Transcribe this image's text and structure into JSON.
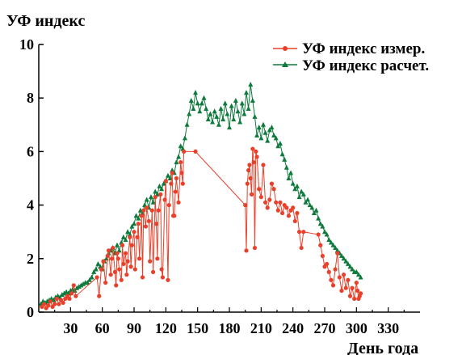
{
  "chart_data": {
    "type": "line",
    "ylabel": "УФ индекс",
    "xlabel": "День года",
    "xlim": [
      0,
      360
    ],
    "ylim": [
      0,
      10
    ],
    "x_ticks": [
      30,
      60,
      90,
      120,
      150,
      180,
      210,
      240,
      270,
      300,
      330
    ],
    "y_ticks": [
      0,
      2,
      4,
      6,
      8,
      10
    ],
    "legend_position": "top-right",
    "series": [
      {
        "name": "УФ индекс измер.",
        "color": "#e8402a",
        "marker": "circle",
        "x": [
          3,
          5,
          7,
          9,
          11,
          13,
          15,
          17,
          19,
          21,
          23,
          25,
          27,
          29,
          31,
          33,
          35,
          55,
          57,
          59,
          61,
          63,
          65,
          66,
          68,
          69,
          70,
          72,
          73,
          74,
          75,
          76,
          78,
          79,
          80,
          82,
          83,
          84,
          86,
          87,
          88,
          90,
          91,
          93,
          94,
          95,
          97,
          98,
          99,
          101,
          102,
          104,
          105,
          107,
          108,
          110,
          111,
          112,
          113,
          115,
          116,
          117,
          119,
          120,
          122,
          123,
          125,
          126,
          127,
          128,
          129,
          130,
          132,
          134,
          135,
          136,
          137,
          148,
          195,
          196,
          197,
          198,
          199,
          200,
          201,
          202,
          203,
          204,
          205,
          206,
          208,
          210,
          212,
          214,
          216,
          218,
          220,
          222,
          224,
          226,
          228,
          230,
          232,
          234,
          236,
          238,
          240,
          242,
          244,
          246,
          248,
          250,
          264,
          266,
          268,
          270,
          272,
          274,
          276,
          278,
          280,
          282,
          284,
          286,
          288,
          290,
          292,
          294,
          296,
          298,
          300,
          301,
          302,
          303,
          304
        ],
        "y": [
          0.2,
          0.3,
          0.15,
          0.25,
          0.4,
          0.2,
          0.3,
          0.5,
          0.3,
          0.45,
          0.35,
          0.5,
          0.6,
          0.5,
          0.7,
          1.0,
          0.6,
          1.3,
          0.6,
          1.6,
          1.9,
          1.1,
          2.1,
          2.3,
          1.4,
          2.0,
          2.4,
          1.5,
          1.0,
          2.2,
          2.0,
          1.6,
          1.2,
          2.5,
          1.8,
          2.2,
          1.4,
          1.9,
          2.8,
          1.7,
          2.5,
          3.0,
          1.6,
          2.8,
          3.3,
          2.0,
          3.6,
          1.3,
          3.8,
          3.2,
          3.9,
          3.4,
          1.9,
          3.8,
          1.5,
          4.3,
          3.3,
          2.0,
          3.8,
          4.4,
          1.6,
          1.3,
          4.2,
          4.9,
          1.2,
          4.0,
          4.8,
          5.2,
          3.6,
          3.6,
          4.5,
          5.0,
          4.1,
          5.6,
          5.2,
          4.8,
          6.0,
          6.0,
          4.0,
          2.3,
          4.8,
          5.3,
          5.5,
          5.0,
          4.4,
          6.1,
          5.6,
          2.4,
          6.0,
          5.8,
          4.6,
          4.3,
          5.5,
          4.1,
          3.9,
          4.2,
          4.8,
          4.6,
          4.1,
          3.8,
          4.1,
          3.7,
          4.0,
          3.9,
          3.6,
          3.8,
          3.9,
          3.4,
          3.7,
          3.0,
          2.4,
          3.0,
          2.9,
          2.5,
          2.1,
          1.7,
          1.8,
          1.5,
          1.2,
          1.0,
          1.6,
          2.2,
          1.3,
          0.8,
          1.4,
          0.9,
          1.2,
          0.6,
          0.9,
          0.5,
          1.1,
          0.8,
          0.5,
          0.6,
          0.7
        ]
      },
      {
        "name": "УФ индекс расчет.",
        "color": "#0e7a3c",
        "marker": "triangle",
        "x": [
          2,
          4,
          6,
          8,
          10,
          12,
          14,
          16,
          18,
          20,
          22,
          24,
          26,
          28,
          30,
          32,
          34,
          36,
          38,
          40,
          42,
          44,
          46,
          48,
          50,
          52,
          54,
          56,
          58,
          60,
          62,
          64,
          66,
          68,
          70,
          72,
          74,
          76,
          78,
          80,
          82,
          84,
          86,
          88,
          90,
          92,
          94,
          96,
          98,
          100,
          102,
          104,
          106,
          108,
          110,
          112,
          114,
          116,
          118,
          120,
          122,
          124,
          126,
          128,
          130,
          132,
          134,
          136,
          138,
          140,
          142,
          144,
          146,
          148,
          150,
          152,
          154,
          156,
          158,
          160,
          162,
          164,
          166,
          168,
          170,
          172,
          174,
          176,
          178,
          180,
          182,
          184,
          186,
          188,
          190,
          192,
          194,
          196,
          198,
          200,
          202,
          204,
          206,
          208,
          210,
          212,
          214,
          216,
          218,
          220,
          222,
          224,
          226,
          228,
          230,
          232,
          234,
          236,
          238,
          240,
          242,
          244,
          246,
          248,
          250,
          252,
          254,
          256,
          258,
          260,
          262,
          264,
          266,
          268,
          270,
          272,
          274,
          276,
          278,
          280,
          282,
          284,
          286,
          288,
          290,
          292,
          294,
          296,
          298,
          300,
          302,
          304
        ],
        "y": [
          0.3,
          0.4,
          0.35,
          0.4,
          0.45,
          0.5,
          0.45,
          0.55,
          0.6,
          0.55,
          0.65,
          0.7,
          0.75,
          0.7,
          0.8,
          0.85,
          0.8,
          0.9,
          0.95,
          1.0,
          1.05,
          1.1,
          1.1,
          1.2,
          1.3,
          1.5,
          1.6,
          1.8,
          1.7,
          1.6,
          1.9,
          2.0,
          2.2,
          2.3,
          2.4,
          2.2,
          2.5,
          2.3,
          2.6,
          2.8,
          2.7,
          3.0,
          2.9,
          3.2,
          3.3,
          3.6,
          3.5,
          3.8,
          3.7,
          4.0,
          4.2,
          3.9,
          4.3,
          4.1,
          4.5,
          4.4,
          4.7,
          4.6,
          4.8,
          4.9,
          5.1,
          5.0,
          5.3,
          5.2,
          5.6,
          5.8,
          6.2,
          6.1,
          6.5,
          7.0,
          7.4,
          7.9,
          7.6,
          8.2,
          7.8,
          7.5,
          7.8,
          8.0,
          7.6,
          7.2,
          7.4,
          7.1,
          7.5,
          7.3,
          7.0,
          7.6,
          7.2,
          7.8,
          7.4,
          6.9,
          7.7,
          7.2,
          7.9,
          7.5,
          7.1,
          7.8,
          7.4,
          8.2,
          7.6,
          8.5,
          7.9,
          7.3,
          6.6,
          6.9,
          6.5,
          7.0,
          6.7,
          6.4,
          6.8,
          6.9,
          6.6,
          6.5,
          6.2,
          6.3,
          5.9,
          5.7,
          5.4,
          5.0,
          5.2,
          4.8,
          4.6,
          4.7,
          4.3,
          4.5,
          4.4,
          4.1,
          4.2,
          4.0,
          3.9,
          3.7,
          3.8,
          3.5,
          3.3,
          3.2,
          3.0,
          2.9,
          2.7,
          2.6,
          2.5,
          2.4,
          2.3,
          2.2,
          2.1,
          2.0,
          1.9,
          1.8,
          1.7,
          1.6,
          1.5,
          1.5,
          1.4,
          1.3
        ]
      }
    ]
  }
}
